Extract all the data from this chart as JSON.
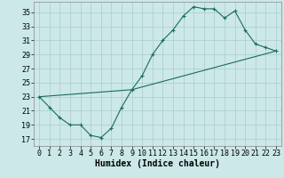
{
  "xlabel": "Humidex (Indice chaleur)",
  "background_color": "#cce8e8",
  "line_color": "#1a6b5e",
  "grid_color": "#aacccc",
  "xlim": [
    -0.5,
    23.5
  ],
  "ylim": [
    16,
    36.5
  ],
  "yticks": [
    17,
    19,
    21,
    23,
    25,
    27,
    29,
    31,
    33,
    35
  ],
  "xticks": [
    0,
    1,
    2,
    3,
    4,
    5,
    6,
    7,
    8,
    9,
    10,
    11,
    12,
    13,
    14,
    15,
    16,
    17,
    18,
    19,
    20,
    21,
    22,
    23
  ],
  "line1_x": [
    0,
    1,
    2,
    3,
    4,
    5,
    6,
    7,
    8,
    9,
    10,
    11,
    12,
    13,
    14,
    15,
    16,
    17,
    18,
    19,
    20,
    21,
    22,
    23
  ],
  "line1_y": [
    23,
    21.5,
    20,
    19,
    19,
    17.5,
    17.2,
    18.5,
    21.5,
    24,
    26,
    29,
    31,
    32.5,
    34.5,
    35.8,
    35.5,
    35.5,
    34.2,
    35.2,
    32.5,
    30.5,
    30,
    29.5
  ],
  "line2_x": [
    0,
    9,
    23
  ],
  "line2_y": [
    23,
    24,
    29.5
  ],
  "font_family": "monospace",
  "xlabel_fontsize": 7,
  "tick_fontsize": 6
}
